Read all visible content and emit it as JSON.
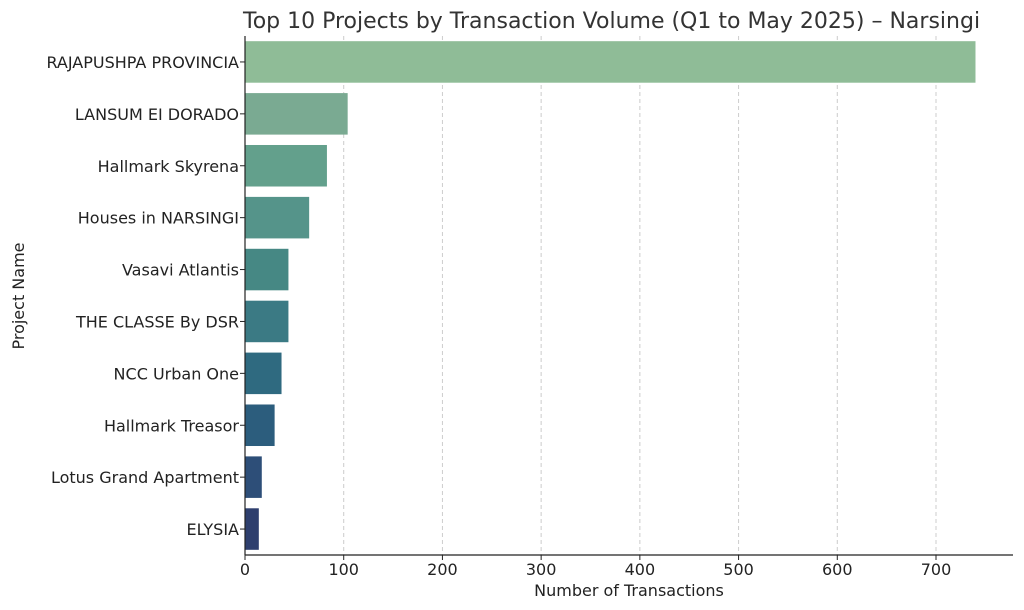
{
  "chart_data": {
    "type": "bar",
    "orientation": "horizontal",
    "title": "Top 10 Projects by Transaction Volume (Q1 to May 2025) – Narsingi",
    "xlabel": "Number of Transactions",
    "ylabel": "Project Name",
    "xlim": [
      0,
      778
    ],
    "xticks": [
      0,
      100,
      200,
      300,
      400,
      500,
      600,
      700
    ],
    "grid": "x-dashed",
    "categories": [
      "RAJAPUSHPA PROVINCIA",
      "LANSUM EI DORADO",
      "Hallmark Skyrena",
      "Houses in NARSINGI",
      "Vasavi Atlantis",
      "THE CLASSE By DSR",
      "NCC Urban One",
      "Hallmark Treasor",
      "Lotus Grand Apartment",
      "ELYSIA"
    ],
    "values": [
      740,
      104,
      83,
      65,
      44,
      44,
      37,
      30,
      17,
      14
    ],
    "colors": [
      "#8fbc97",
      "#7aaa92",
      "#63a08c",
      "#55948a",
      "#468884",
      "#3b7a84",
      "#2f6a80",
      "#2c5d7d",
      "#2d4e78",
      "#2e3f6e"
    ]
  }
}
